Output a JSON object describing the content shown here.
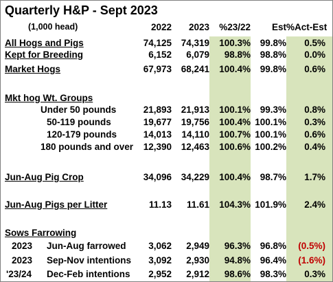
{
  "title": "Quarterly H&P - Sept 2023",
  "unit_label": "(1,000 head)",
  "headers": [
    "2022",
    "2023",
    "%23/22",
    "Est",
    "%Act-Est"
  ],
  "colors": {
    "highlight_band": "#d8e4bc",
    "negative_text": "#c00000"
  },
  "rows": [
    {
      "label": "All Hogs and Pigs",
      "v2022": "74,125",
      "v2023": "74,319",
      "pct": "100.3%",
      "est": "99.8%",
      "diff": "0.5%"
    },
    {
      "label": "Kept for Breeding",
      "v2022": "6,152",
      "v2023": "6,079",
      "pct": "98.8%",
      "est": "98.8%",
      "diff": "0.0%"
    },
    {
      "label": "Market Hogs",
      "v2022": "67,973",
      "v2023": "68,241",
      "pct": "100.4%",
      "est": "99.8%",
      "diff": "0.6%"
    },
    {
      "label": "Mkt hog Wt. Groups"
    },
    {
      "label": "Under 50 pounds",
      "v2022": "21,893",
      "v2023": "21,913",
      "pct": "100.1%",
      "est": "99.3%",
      "diff": "0.8%"
    },
    {
      "label": "50-119 pounds",
      "v2022": "19,677",
      "v2023": "19,756",
      "pct": "100.4%",
      "est": "100.1%",
      "diff": "0.3%"
    },
    {
      "label": "120-179 pounds",
      "v2022": "14,013",
      "v2023": "14,110",
      "pct": "100.7%",
      "est": "100.1%",
      "diff": "0.6%"
    },
    {
      "label": "180 pounds and over",
      "v2022": "12,390",
      "v2023": "12,463",
      "pct": "100.6%",
      "est": "100.2%",
      "diff": "0.4%"
    },
    {
      "label": "Jun-Aug Pig Crop",
      "v2022": "34,096",
      "v2023": "34,229",
      "pct": "100.4%",
      "est": "98.7%",
      "diff": "1.7%"
    },
    {
      "label": "Jun-Aug Pigs per Litter",
      "v2022": "11.13",
      "v2023": "11.61",
      "pct": "104.3%",
      "est": "101.9%",
      "diff": "2.4%"
    },
    {
      "label": "Sows Farrowing"
    },
    {
      "year": "2023",
      "label": "Jun-Aug farrowed",
      "v2022": "3,062",
      "v2023": "2,949",
      "pct": "96.3%",
      "est": "96.8%",
      "diff": "(0.5%)"
    },
    {
      "year": "2023",
      "label": "Sep-Nov intentions",
      "v2022": "3,092",
      "v2023": "2,930",
      "pct": "94.8%",
      "est": "96.4%",
      "diff": "(1.6%)"
    },
    {
      "year": "'23/24",
      "label": "Dec-Feb intentions",
      "v2022": "2,952",
      "v2023": "2,912",
      "pct": "98.6%",
      "est": "98.3%",
      "diff": "0.3%"
    }
  ]
}
